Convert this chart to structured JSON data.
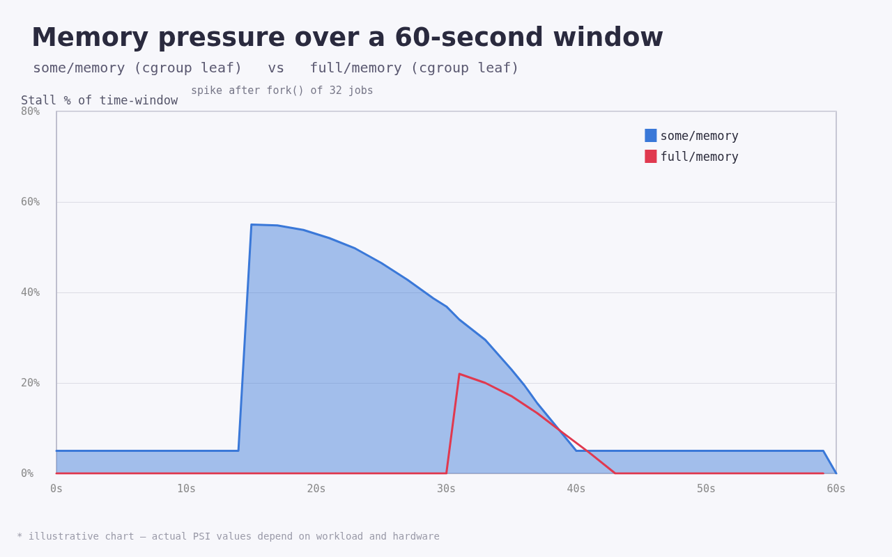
{
  "chart_data": {
    "type": "area",
    "title": "Memory pressure over a 60-second window",
    "subtitle": "some/memory (cgroup leaf)   vs   full/memory (cgroup leaf)",
    "ylabel": "Stall % of time-window",
    "annotations": [
      "spike after fork() of 32 jobs",
      "* illustrative chart — actual PSI values depend on workload and hardware"
    ],
    "series": [
      {
        "name": "some/memory",
        "color": "#3a78d8",
        "x": [
          0,
          14,
          15,
          17,
          19,
          21,
          23,
          25,
          27,
          29,
          30,
          31,
          33,
          35,
          36,
          37,
          38,
          39,
          40,
          59,
          60
        ],
        "values": [
          5,
          5,
          55,
          54.8,
          53.8,
          52,
          49.7,
          46.5,
          42.8,
          38.7,
          36.9,
          34,
          29.5,
          23,
          19.5,
          15.5,
          12,
          8.5,
          5,
          5,
          0
        ]
      },
      {
        "name": "full/memory",
        "type": "line",
        "color": "#e0394f",
        "x": [
          0,
          30,
          31,
          33,
          35,
          37,
          39,
          41,
          43,
          59
        ],
        "values": [
          0,
          0,
          22,
          20,
          17.1,
          13.3,
          8.9,
          4.6,
          0,
          0
        ]
      }
    ],
    "xlim": [
      0,
      60
    ],
    "xticks": [
      {
        "value": 0,
        "label": "0s"
      },
      {
        "value": 10,
        "label": "10s"
      },
      {
        "value": 20,
        "label": "20s"
      },
      {
        "value": 30,
        "label": "30s"
      },
      {
        "value": 40,
        "label": "40s"
      },
      {
        "value": 50,
        "label": "50s"
      },
      {
        "value": 60,
        "label": "60s"
      }
    ],
    "ylim": [
      0,
      80
    ],
    "yticks": [
      {
        "value": 0,
        "label": "0%"
      },
      {
        "value": 20,
        "label": "20%"
      },
      {
        "value": 40,
        "label": "40%"
      },
      {
        "value": 60,
        "label": "60%"
      },
      {
        "value": 80,
        "label": "80%"
      }
    ],
    "grid": "y",
    "legend": "top right",
    "marker": "none",
    "line_style": "solid"
  }
}
